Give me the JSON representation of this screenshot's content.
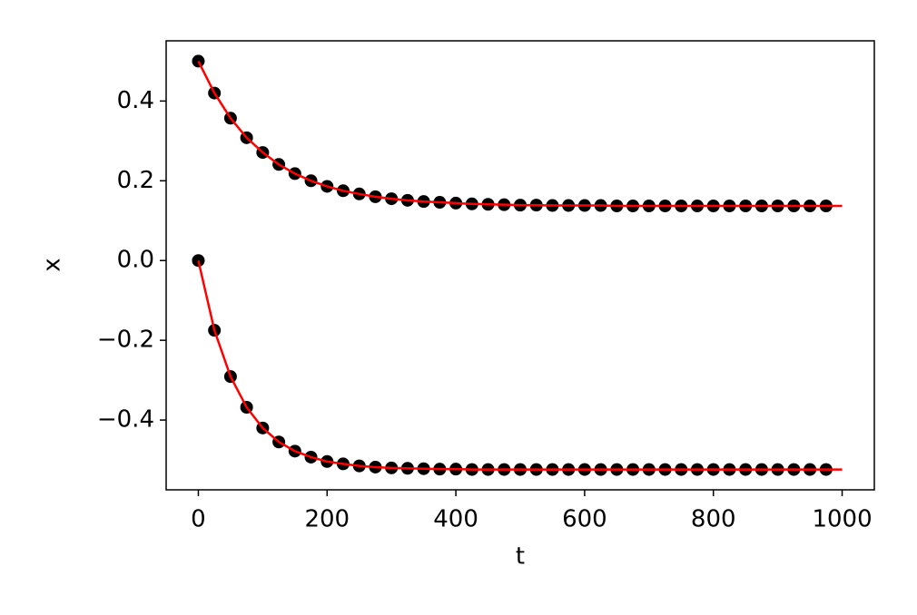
{
  "chart_data": {
    "type": "scatter",
    "xlabel": "t",
    "ylabel": "x",
    "x": [
      0,
      25,
      50,
      75,
      100,
      125,
      150,
      175,
      200,
      225,
      250,
      275,
      300,
      325,
      350,
      375,
      400,
      425,
      450,
      475,
      500,
      525,
      550,
      575,
      600,
      625,
      650,
      675,
      700,
      725,
      750,
      775,
      800,
      825,
      850,
      875,
      900,
      925,
      950,
      975,
      1000
    ],
    "series": [
      {
        "type": "scatter",
        "color": "#000000",
        "values": [
          0.5,
          0.42,
          0.357,
          0.308,
          0.271,
          0.241,
          0.218,
          0.2,
          0.186,
          0.175,
          0.167,
          0.16,
          0.155,
          0.151,
          0.148,
          0.146,
          0.144,
          0.142,
          0.141,
          0.14,
          0.139,
          0.139,
          0.138,
          0.138,
          0.138,
          0.138,
          0.137,
          0.137,
          0.137,
          0.137,
          0.137,
          0.137,
          0.137,
          0.137,
          0.137,
          0.137,
          0.137,
          0.137,
          0.137,
          0.137,
          null
        ]
      },
      {
        "type": "scatter",
        "color": "#000000",
        "values": [
          0,
          -0.175,
          -0.291,
          -0.368,
          -0.42,
          -0.455,
          -0.478,
          -0.493,
          -0.504,
          -0.51,
          -0.515,
          -0.518,
          -0.52,
          -0.521,
          -0.522,
          -0.523,
          -0.523,
          -0.524,
          -0.524,
          -0.524,
          -0.524,
          -0.524,
          -0.524,
          -0.524,
          -0.524,
          -0.524,
          -0.524,
          -0.524,
          -0.524,
          -0.524,
          -0.524,
          -0.524,
          -0.524,
          -0.524,
          -0.524,
          -0.524,
          -0.524,
          -0.524,
          -0.524,
          -0.524,
          null
        ]
      },
      {
        "type": "line",
        "color": "#ff0000",
        "values": [
          0.5,
          0.42,
          0.357,
          0.308,
          0.271,
          0.241,
          0.218,
          0.2,
          0.186,
          0.175,
          0.167,
          0.16,
          0.155,
          0.151,
          0.148,
          0.146,
          0.144,
          0.142,
          0.141,
          0.14,
          0.139,
          0.139,
          0.138,
          0.138,
          0.138,
          0.138,
          0.137,
          0.137,
          0.137,
          0.137,
          0.137,
          0.137,
          0.137,
          0.137,
          0.137,
          0.137,
          0.137,
          0.137,
          0.137,
          0.137,
          0.137
        ]
      },
      {
        "type": "line",
        "color": "#ff0000",
        "values": [
          0,
          -0.175,
          -0.291,
          -0.368,
          -0.42,
          -0.455,
          -0.478,
          -0.493,
          -0.504,
          -0.51,
          -0.515,
          -0.518,
          -0.52,
          -0.521,
          -0.522,
          -0.523,
          -0.523,
          -0.524,
          -0.524,
          -0.524,
          -0.524,
          -0.524,
          -0.524,
          -0.524,
          -0.524,
          -0.524,
          -0.524,
          -0.524,
          -0.524,
          -0.524,
          -0.524,
          -0.524,
          -0.524,
          -0.524,
          -0.524,
          -0.524,
          -0.524,
          -0.524,
          -0.524,
          -0.524,
          -0.524
        ]
      }
    ],
    "xlim": [
      -50,
      1050
    ],
    "ylim": [
      -0.575,
      0.551
    ],
    "xticks": [
      0,
      200,
      400,
      600,
      800,
      1000
    ],
    "yticks": [
      {
        "value": -0.4,
        "label": "−0.4"
      },
      {
        "value": -0.2,
        "label": "−0.2"
      },
      {
        "value": 0,
        "label": "0.0"
      },
      0.2,
      0.4
    ],
    "grid": false
  }
}
